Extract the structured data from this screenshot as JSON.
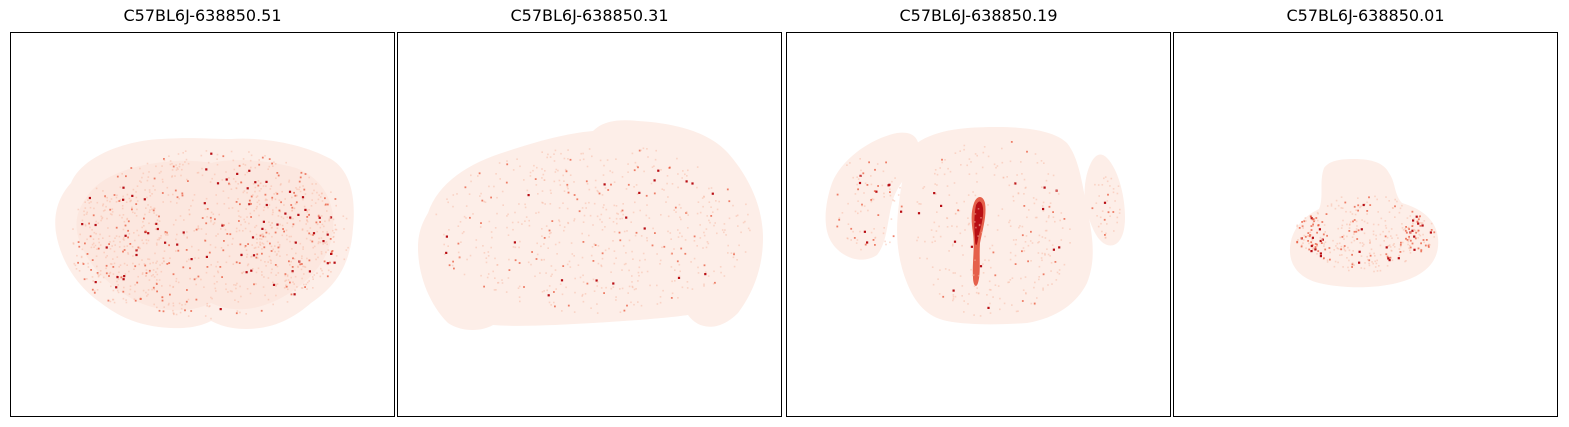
{
  "figure": {
    "panels": [
      {
        "title": "C57BL6J-638850.51"
      },
      {
        "title": "C57BL6J-638850.31"
      },
      {
        "title": "C57BL6J-638850.19"
      },
      {
        "title": "C57BL6J-638850.01"
      }
    ]
  },
  "colors": {
    "tissue_fill": "#fdeee8",
    "spot_light": "#f7b8a2",
    "spot_mid": "#e8583c",
    "spot_dark": "#b80e14",
    "frame": "#000000"
  }
}
